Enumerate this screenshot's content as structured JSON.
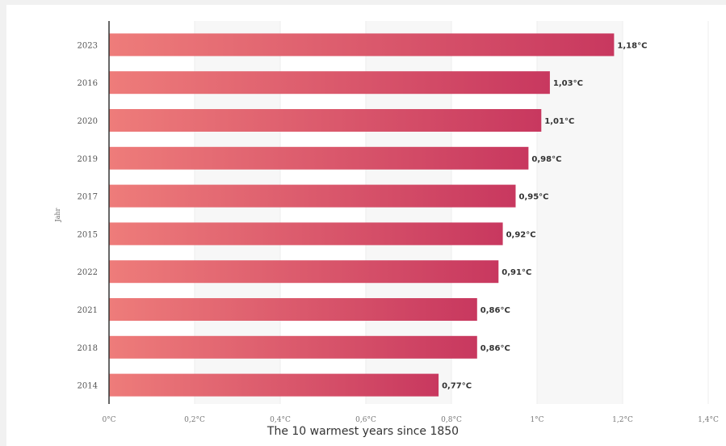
{
  "caption": "The 10 warmest years since 1850",
  "chart_data": {
    "type": "bar",
    "orientation": "horizontal",
    "categories": [
      "2023",
      "2016",
      "2020",
      "2019",
      "2017",
      "2015",
      "2022",
      "2021",
      "2018",
      "2014"
    ],
    "values": [
      1.18,
      1.03,
      1.01,
      0.98,
      0.95,
      0.92,
      0.91,
      0.86,
      0.86,
      0.77
    ],
    "value_labels": [
      "1,18°C",
      "1,03°C",
      "1,01°C",
      "0,98°C",
      "0,95°C",
      "0,92°C",
      "0,91°C",
      "0,86°C",
      "0,86°C",
      "0,77°C"
    ],
    "ylabel": "Jahr",
    "xlabel": "",
    "xlim": [
      0,
      1.4
    ],
    "x_ticks": [
      0,
      0.2,
      0.4,
      0.6,
      0.8,
      1.0,
      1.2,
      1.4
    ],
    "x_tick_labels": [
      "0°C",
      "0,2°C",
      "0,4°C",
      "0,6°C",
      "0,8°C",
      "1°C",
      "1,2°C",
      "1,4°C"
    ],
    "grid": true,
    "colors": {
      "bar_start": "#ee7c7a",
      "bar_end": "#c8385f",
      "grid_band": "#f7f7f7"
    }
  }
}
